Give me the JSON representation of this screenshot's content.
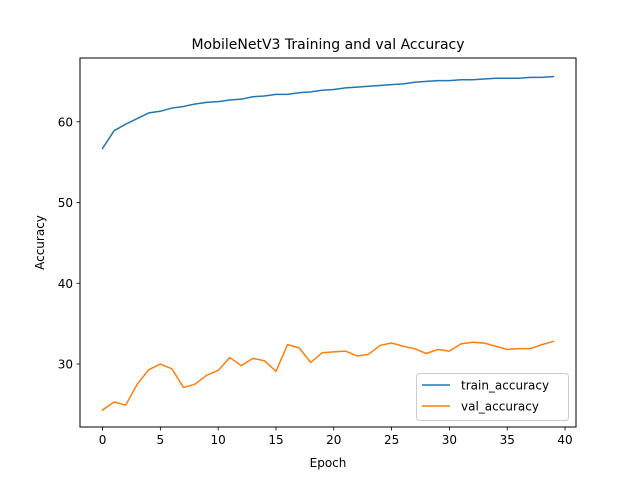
{
  "chart_data": {
    "type": "line",
    "title": "MobileNetV3 Training and val Accuracy",
    "xlabel": "Epoch",
    "ylabel": "Accuracy",
    "xlim": [
      -1.95,
      40.95
    ],
    "ylim": [
      22.2,
      67.9
    ],
    "x_ticks": [
      0,
      5,
      10,
      15,
      20,
      25,
      30,
      35,
      40
    ],
    "y_ticks": [
      30,
      40,
      50,
      60
    ],
    "grid": false,
    "legend_position": "lower right",
    "x": [
      0,
      1,
      2,
      3,
      4,
      5,
      6,
      7,
      8,
      9,
      10,
      11,
      12,
      13,
      14,
      15,
      16,
      17,
      18,
      19,
      20,
      21,
      22,
      23,
      24,
      25,
      26,
      27,
      28,
      29,
      30,
      31,
      32,
      33,
      34,
      35,
      36,
      37,
      38,
      39
    ],
    "series": [
      {
        "name": "train_accuracy",
        "color": "#1f77b4",
        "values": [
          56.7,
          58.9,
          59.7,
          60.4,
          61.1,
          61.3,
          61.7,
          61.9,
          62.2,
          62.4,
          62.5,
          62.7,
          62.8,
          63.1,
          63.2,
          63.4,
          63.4,
          63.6,
          63.7,
          63.9,
          64.0,
          64.2,
          64.3,
          64.4,
          64.5,
          64.6,
          64.7,
          64.9,
          65.0,
          65.1,
          65.1,
          65.2,
          65.2,
          65.3,
          65.4,
          65.4,
          65.4,
          65.5,
          65.5,
          65.6
        ]
      },
      {
        "name": "val_accuracy",
        "color": "#ff7f0e",
        "values": [
          24.3,
          25.3,
          24.9,
          27.5,
          29.3,
          30.0,
          29.4,
          27.1,
          27.5,
          28.6,
          29.2,
          30.8,
          29.8,
          30.7,
          30.4,
          29.1,
          32.4,
          32.0,
          30.2,
          31.4,
          31.5,
          31.6,
          31.0,
          31.2,
          32.3,
          32.6,
          32.2,
          31.9,
          31.3,
          31.8,
          31.6,
          32.5,
          32.7,
          32.6,
          32.2,
          31.8,
          31.9,
          31.9,
          32.4,
          32.8
        ]
      }
    ]
  }
}
